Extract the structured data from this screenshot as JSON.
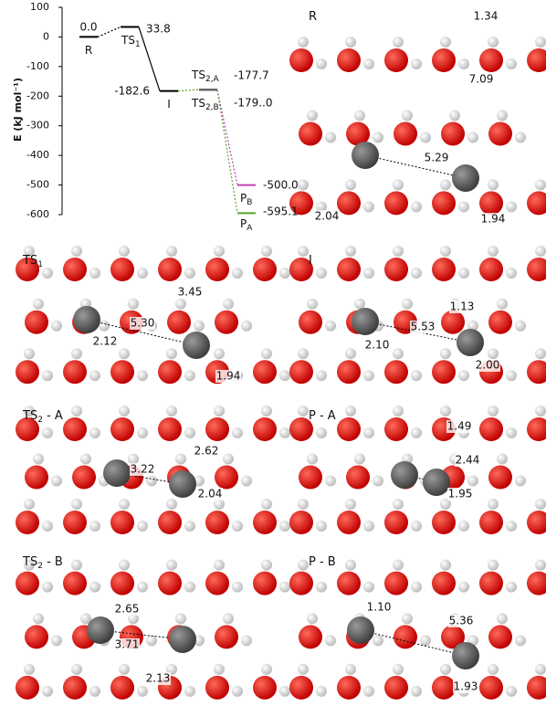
{
  "chart_data": {
    "type": "energy-levels",
    "ylabel": "E (kJ mol⁻¹)",
    "categories": [
      "R",
      "TS",
      "I",
      "TS",
      "TS",
      "P",
      "P"
    ],
    "subscripts": [
      null,
      "1",
      null,
      "2,A",
      "2,B",
      "B",
      "A"
    ],
    "values": [
      0.0,
      33.8,
      -182.6,
      -177.7,
      -179.0,
      -500.0,
      -595.1
    ],
    "value_labels": [
      "0.0",
      "33.8",
      "-182.6",
      "-177.7",
      "-179..0",
      "-500.0",
      "-595.1"
    ],
    "colors": [
      "#000000",
      "#000000",
      "#000000",
      "#666666",
      "#666666",
      "#c040b0",
      "#5aa02c"
    ],
    "ylim": [
      -600,
      100
    ],
    "yticks": [
      100,
      0,
      -100,
      -200,
      -300,
      -400,
      -500,
      -600
    ]
  },
  "panels": [
    {
      "label": "R",
      "label_sub": null,
      "label_rest": null,
      "distances": [
        "1.34",
        "7.09",
        "5.29",
        "2.04",
        "1.94"
      ]
    },
    {
      "label": "TS",
      "label_sub": "1",
      "label_rest": null,
      "distances": [
        "3.45",
        "5.30",
        "2.12",
        "1.94"
      ]
    },
    {
      "label": "I",
      "label_sub": null,
      "label_rest": null,
      "distances": [
        "1.13",
        "5.53",
        "2.10",
        "2.00"
      ]
    },
    {
      "label": "TS",
      "label_sub": "2",
      "label_rest": " - A",
      "distances": [
        "2.62",
        "3.22",
        "2.04"
      ]
    },
    {
      "label": "P - A",
      "label_sub": null,
      "label_rest": null,
      "distances": [
        "1.49",
        "2.44",
        "1.95"
      ]
    },
    {
      "label": "TS",
      "label_sub": "2",
      "label_rest": " - B",
      "distances": [
        "2.65",
        "3.71",
        "2.13"
      ]
    },
    {
      "label": "P - B",
      "label_sub": null,
      "label_rest": null,
      "distances": [
        "1.10",
        "5.36",
        "1.93"
      ]
    }
  ]
}
